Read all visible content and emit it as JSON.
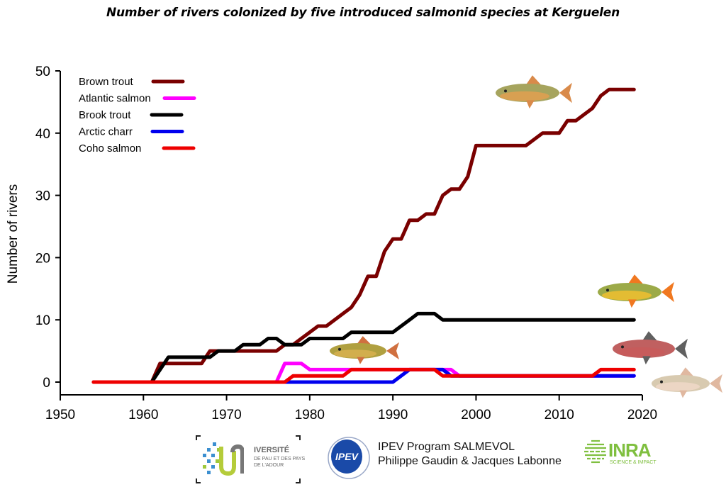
{
  "chart_data": {
    "type": "line",
    "title": "Number of rivers colonized by five introduced salmonid species at Kerguelen",
    "xlabel": "",
    "ylabel": "Number of rivers",
    "xlim": [
      1950,
      2020
    ],
    "ylim": [
      -2,
      50
    ],
    "xticks": [
      1950,
      1960,
      1970,
      1980,
      1990,
      2000,
      2010,
      2020
    ],
    "yticks": [
      0,
      10,
      20,
      30,
      40,
      50
    ],
    "grid": false,
    "legend_position": "top-left",
    "series": [
      {
        "name": "Brown trout",
        "color": "#7a0000",
        "points": [
          [
            1954,
            0
          ],
          [
            1961,
            0
          ],
          [
            1962,
            3
          ],
          [
            1967,
            3
          ],
          [
            1968,
            5
          ],
          [
            1976,
            5
          ],
          [
            1977,
            6
          ],
          [
            1978,
            6
          ],
          [
            1979,
            7
          ],
          [
            1980,
            8
          ],
          [
            1981,
            9
          ],
          [
            1982,
            9
          ],
          [
            1983,
            10
          ],
          [
            1984,
            11
          ],
          [
            1985,
            12
          ],
          [
            1986,
            14
          ],
          [
            1987,
            17
          ],
          [
            1988,
            17
          ],
          [
            1989,
            21
          ],
          [
            1990,
            23
          ],
          [
            1991,
            23
          ],
          [
            1992,
            26
          ],
          [
            1993,
            26
          ],
          [
            1994,
            27
          ],
          [
            1995,
            27
          ],
          [
            1996,
            30
          ],
          [
            1997,
            31
          ],
          [
            1998,
            31
          ],
          [
            1999,
            33
          ],
          [
            2000,
            38
          ],
          [
            2006,
            38
          ],
          [
            2008,
            40
          ],
          [
            2010,
            40
          ],
          [
            2011,
            42
          ],
          [
            2012,
            42
          ],
          [
            2014,
            44
          ],
          [
            2015,
            46
          ],
          [
            2016,
            47
          ],
          [
            2019,
            47
          ]
        ]
      },
      {
        "name": "Atlantic salmon",
        "color": "#ff00ff",
        "points": [
          [
            1976,
            0
          ],
          [
            1977,
            3
          ],
          [
            1979,
            3
          ],
          [
            1980,
            2
          ],
          [
            1985,
            2
          ],
          [
            1997,
            2
          ],
          [
            1998,
            1
          ],
          [
            2019,
            1
          ]
        ]
      },
      {
        "name": "Brook trout",
        "color": "#000000",
        "points": [
          [
            1961,
            0
          ],
          [
            1963,
            4
          ],
          [
            1968,
            4
          ],
          [
            1969,
            5
          ],
          [
            1971,
            5
          ],
          [
            1972,
            6
          ],
          [
            1974,
            6
          ],
          [
            1975,
            7
          ],
          [
            1976,
            7
          ],
          [
            1977,
            6
          ],
          [
            1979,
            6
          ],
          [
            1980,
            7
          ],
          [
            1984,
            7
          ],
          [
            1985,
            8
          ],
          [
            1990,
            8
          ],
          [
            1992,
            10
          ],
          [
            1993,
            11
          ],
          [
            1995,
            11
          ],
          [
            1996,
            10
          ],
          [
            2019,
            10
          ]
        ]
      },
      {
        "name": "Arctic charr",
        "color": "#0000ee",
        "points": [
          [
            1977,
            0
          ],
          [
            1990,
            0
          ],
          [
            1992,
            2
          ],
          [
            1996,
            2
          ],
          [
            1997,
            1
          ],
          [
            2019,
            1
          ]
        ]
      },
      {
        "name": "Coho salmon",
        "color": "#ee0000",
        "points": [
          [
            1954,
            0
          ],
          [
            1977,
            0
          ],
          [
            1978,
            1
          ],
          [
            1984,
            1
          ],
          [
            1985,
            2
          ],
          [
            1995,
            2
          ],
          [
            1996,
            1
          ],
          [
            2014,
            1
          ],
          [
            2015,
            2
          ],
          [
            2019,
            2
          ]
        ]
      }
    ],
    "annotations": [
      {
        "type": "image",
        "label": "brown-trout-illustration"
      },
      {
        "type": "image",
        "label": "brook-trout-illustration"
      },
      {
        "type": "image",
        "label": "coho-salmon-illustration"
      },
      {
        "type": "image",
        "label": "arctic-charr-illustration"
      },
      {
        "type": "image",
        "label": "atlantic-salmon-illustration"
      }
    ]
  },
  "footer": {
    "upau_logo": {
      "big": "IVERSITÉ",
      "sub": "DE PAU ET DES PAYS DE L'ADOUR"
    },
    "ipev_logo": {
      "text": "IPEV"
    },
    "credits_line1": "IPEV Program SALMEVOL",
    "credits_line2": "Philippe Gaudin & Jacques Labonne",
    "inra_logo": {
      "text": "INRA",
      "sub": "SCIENCE & IMPACT"
    }
  }
}
